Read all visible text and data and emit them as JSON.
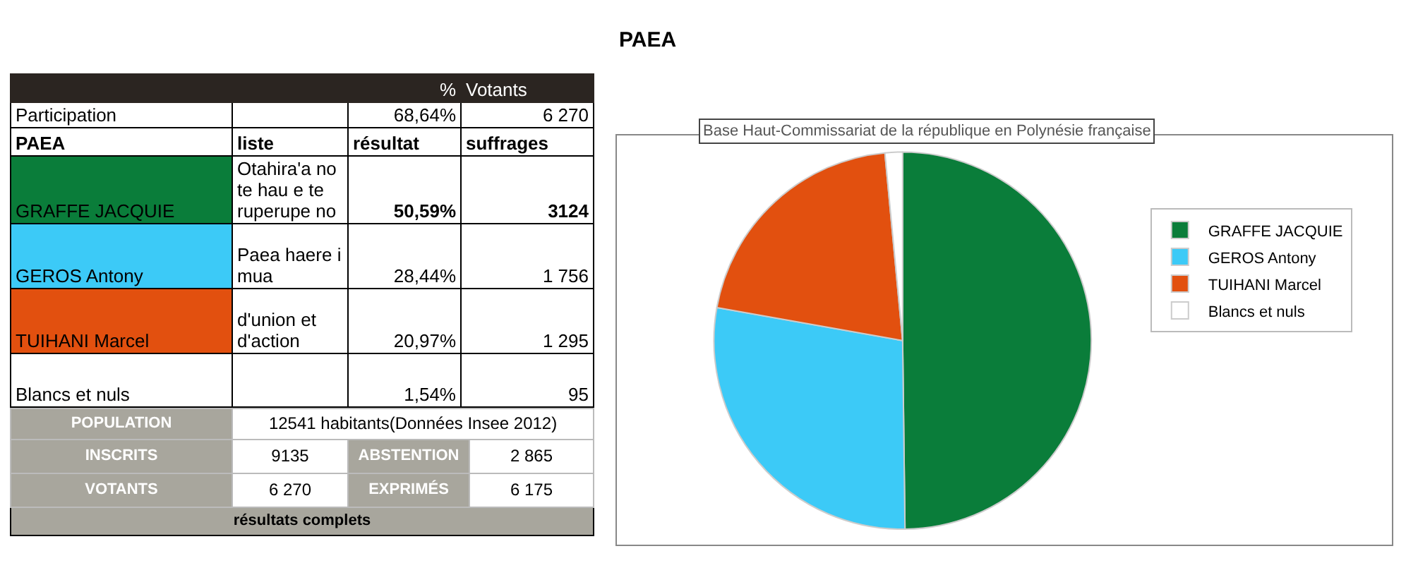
{
  "chart_data": [
    {
      "type": "other",
      "annotations": [
        "%",
        "Votants",
        "Participation",
        "68,64%",
        "6 270",
        "PAEA",
        "liste",
        "résultat",
        "suffrages",
        "GRAFFE JACQUIE",
        "Otahira'a no te hau e te ruperupe no",
        "50,59%",
        "3124",
        "GEROS Antony",
        "Paea haere i mua",
        "28,44%",
        "1 756",
        "TUIHANI Marcel",
        "d'union et d'action",
        "20,97%",
        "1 295",
        "Blancs et nuls",
        "1,54%",
        "95",
        "POPULATION",
        "12541 habitants(Données Insee 2012)",
        "INSCRITS",
        "9135",
        "ABSTENTION",
        "2 865",
        "VOTANTS",
        "6 270",
        "EXPRIMÉS",
        "6 175",
        "résultats complets"
      ]
    },
    {
      "type": "pie",
      "title": "PAEA",
      "subtitle": "Base Haut-Commissariat de la république en Polynésie française",
      "categories": [
        "GRAFFE JACQUIE",
        "GEROS Antony",
        "TUIHANI Marcel",
        "Blancs et nuls"
      ],
      "values": [
        49.8,
        28.0,
        20.7,
        1.5
      ],
      "colors": [
        "#0a7d3a",
        "#3ccaf7",
        "#e2500f",
        "#ffffff"
      ],
      "legend": "right"
    }
  ]
}
